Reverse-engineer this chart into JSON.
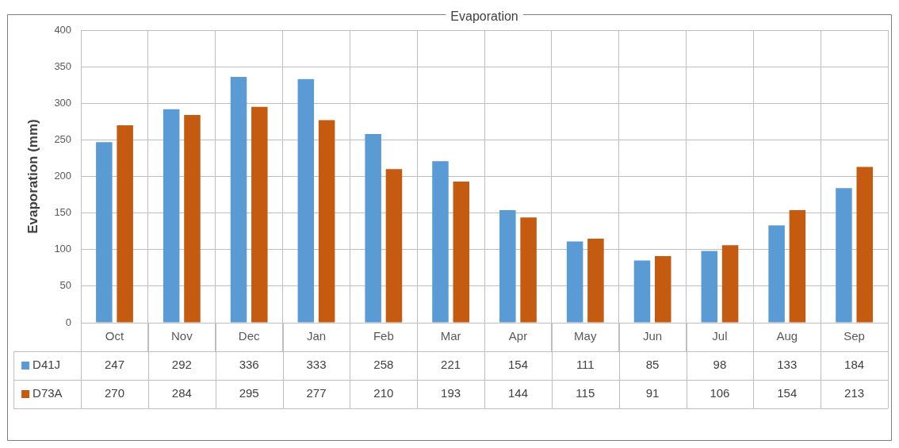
{
  "chart_data": {
    "type": "bar",
    "title": "Evaporation",
    "ylabel": "Evaporation (mm)",
    "categories": [
      "Oct",
      "Nov",
      "Dec",
      "Jan",
      "Feb",
      "Mar",
      "Apr",
      "May",
      "Jun",
      "Jul",
      "Aug",
      "Sep"
    ],
    "series": [
      {
        "name": "D41J",
        "color": "#5b9bd5",
        "values": [
          247,
          292,
          336,
          333,
          258,
          221,
          154,
          111,
          85,
          98,
          133,
          184
        ]
      },
      {
        "name": "D73A",
        "color": "#c55a11",
        "values": [
          270,
          284,
          295,
          277,
          210,
          193,
          144,
          115,
          91,
          106,
          154,
          213
        ]
      }
    ],
    "ylim": [
      0,
      400
    ],
    "yticks": [
      0,
      50,
      100,
      150,
      200,
      250,
      300,
      350,
      400
    ],
    "grid": true,
    "legend": "bottom",
    "data_labels": true
  }
}
